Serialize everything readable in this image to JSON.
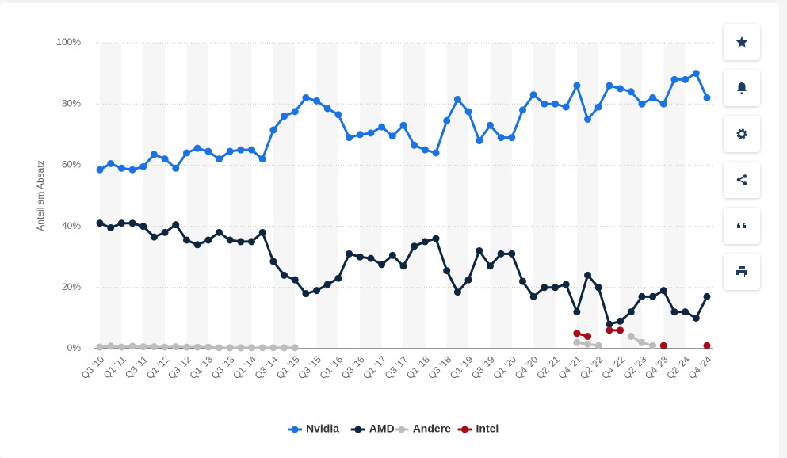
{
  "chart_data": {
    "type": "line",
    "y_label": "Anteil am Absatz",
    "categories": [
      "Q3 '10",
      null,
      "Q1 '11",
      null,
      "Q3 '11",
      null,
      "Q1 '12",
      null,
      "Q3 '12",
      null,
      "Q1 '13",
      null,
      "Q3 '13",
      null,
      "Q1 '14",
      null,
      "Q3 '14",
      null,
      "Q1 '15",
      null,
      "Q3 '15",
      null,
      "Q1 '16",
      null,
      "Q3 '16",
      null,
      "Q1 '17",
      null,
      "Q3 '17",
      null,
      "Q1 '18",
      null,
      "Q3 '18",
      null,
      "Q1 '19",
      null,
      "Q3 '19",
      null,
      "Q1 '20",
      null,
      "Q4 '20",
      null,
      "Q2 '21",
      null,
      "Q4 '21",
      null,
      "Q2 '22",
      null,
      "Q4 '22",
      null,
      "Q2 '23",
      null,
      "Q4 '23",
      null,
      "Q2 '24",
      null,
      "Q4 '24"
    ],
    "series": [
      {
        "name": "Nvidia",
        "color": "#1b72e2",
        "values": [
          58.5,
          60.5,
          59,
          58.5,
          59.5,
          63.5,
          62,
          59,
          64,
          65.5,
          64.5,
          62,
          64.5,
          65,
          65,
          62,
          71.5,
          76,
          77.5,
          82,
          81,
          78.5,
          76.5,
          69,
          70,
          70.5,
          72.5,
          69.5,
          73,
          66.5,
          65,
          64,
          74.5,
          81.5,
          77.5,
          68,
          73,
          69,
          69,
          78,
          83,
          80,
          80,
          79,
          86,
          75,
          79,
          86,
          85,
          84,
          80,
          82,
          80,
          88,
          88,
          90,
          82
        ]
      },
      {
        "name": "AMD",
        "color": "#0e2640",
        "values": [
          41,
          39.5,
          41,
          41,
          40,
          36.5,
          38,
          40.5,
          35.5,
          34,
          35.5,
          38,
          35.5,
          35,
          35,
          38,
          28.5,
          24,
          22.5,
          18,
          19,
          21,
          23,
          31,
          30,
          29.5,
          27.5,
          30.5,
          27,
          33.5,
          35,
          36,
          25.5,
          18.5,
          22.5,
          32,
          27,
          31,
          31,
          22,
          17,
          20,
          20,
          21,
          12,
          24,
          20,
          8,
          9,
          12,
          17,
          17,
          19,
          12,
          12,
          10,
          17
        ]
      },
      {
        "name": "Andere",
        "color": "#bdbdbd",
        "values": [
          0.5,
          0.8,
          0.5,
          0.8,
          0.6,
          0.6,
          0.5,
          0.6,
          0.5,
          0.5,
          0.5,
          0.3,
          0.3,
          0.3,
          0.3,
          0.3,
          0.3,
          0.3,
          0.3,
          null,
          null,
          null,
          null,
          null,
          null,
          null,
          null,
          null,
          null,
          null,
          null,
          null,
          null,
          null,
          null,
          null,
          null,
          null,
          null,
          null,
          null,
          null,
          null,
          null,
          2,
          1.5,
          1,
          null,
          null,
          4,
          2,
          1,
          null,
          null,
          null,
          null,
          null
        ]
      },
      {
        "name": "Intel",
        "color": "#a50d18",
        "values": [
          null,
          null,
          null,
          null,
          null,
          null,
          null,
          null,
          null,
          null,
          null,
          null,
          null,
          null,
          null,
          null,
          null,
          null,
          null,
          null,
          null,
          null,
          null,
          null,
          null,
          null,
          null,
          null,
          null,
          null,
          null,
          null,
          null,
          null,
          null,
          null,
          null,
          null,
          null,
          null,
          null,
          null,
          null,
          null,
          5,
          4,
          null,
          6,
          6,
          null,
          null,
          null,
          1,
          null,
          null,
          null,
          1
        ]
      }
    ],
    "ylim": [
      0,
      100
    ],
    "yticks": [
      {
        "value": 0,
        "label": "0%"
      },
      {
        "value": 20,
        "label": "20%"
      },
      {
        "value": 40,
        "label": "40%"
      },
      {
        "value": 60,
        "label": "60%"
      },
      {
        "value": 80,
        "label": "80%"
      },
      {
        "value": 100,
        "label": "100%"
      }
    ],
    "grid": true,
    "legend": "bottom"
  }
}
